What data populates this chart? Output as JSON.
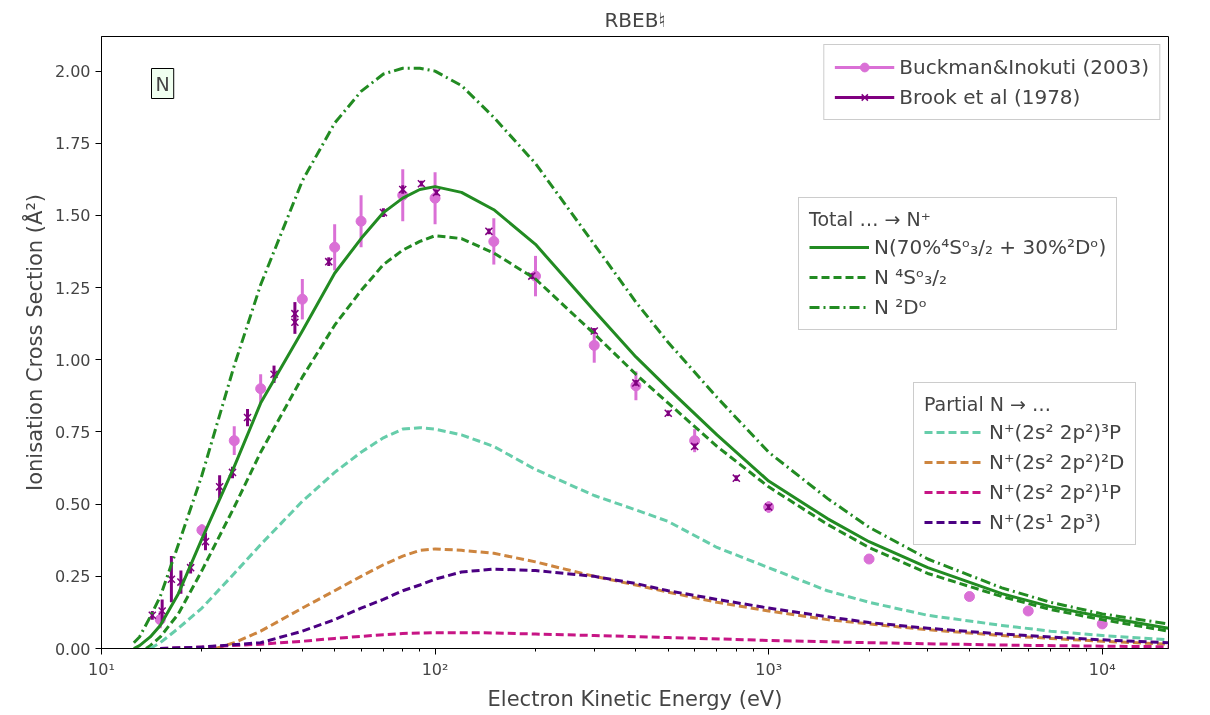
{
  "chart_data": {
    "type": "line",
    "title": "RBEB♮",
    "xlabel": "Electron Kinetic Energy (eV)",
    "ylabel": "Ionisation Cross Section (Å²)",
    "log": "x",
    "xlim": [
      10,
      15800
    ],
    "ylim": [
      0,
      2.12
    ],
    "xticks": [
      {
        "value": 10,
        "label": "10¹"
      },
      {
        "value": 100,
        "label": "10²"
      },
      {
        "value": 1000,
        "label": "10³"
      },
      {
        "value": 10000,
        "label": "10⁴"
      }
    ],
    "yticks": [
      {
        "value": 0,
        "label": "0.00"
      },
      {
        "value": 0.25,
        "label": "0.25"
      },
      {
        "value": 0.5,
        "label": "0.50"
      },
      {
        "value": 0.75,
        "label": "0.75"
      },
      {
        "value": 1,
        "label": "1.00"
      },
      {
        "value": 1.25,
        "label": "1.25"
      },
      {
        "value": 1.5,
        "label": "1.50"
      },
      {
        "value": 1.75,
        "label": "1.75"
      },
      {
        "value": 2,
        "label": "2.00"
      }
    ],
    "grid": false,
    "legend": "top right",
    "legend_title": [
      "Total … → N⁺",
      "Partial N → …"
    ],
    "annotations": [
      "N"
    ],
    "series": [
      {
        "name": "Buckman&Inokuti (2003)",
        "type": "scatter",
        "marker": "circle",
        "color": "#da70d6",
        "x": [
          15,
          20,
          25,
          30,
          40,
          50,
          60,
          80,
          100,
          150,
          200,
          300,
          400,
          600,
          1000,
          2000,
          4000,
          6000,
          10000
        ],
        "values": [
          0.1,
          0.41,
          0.72,
          0.9,
          1.21,
          1.39,
          1.48,
          1.57,
          1.56,
          1.41,
          1.29,
          1.05,
          0.91,
          0.72,
          0.49,
          0.31,
          0.18,
          0.13,
          0.085
        ],
        "errors": [
          0.03,
          0.02,
          0.05,
          0.05,
          0.07,
          0.08,
          0.09,
          0.09,
          0.09,
          0.08,
          0.07,
          0.06,
          0.05,
          0.04,
          0.02,
          null,
          null,
          null,
          null
        ]
      },
      {
        "name": "Brook et al (1978)",
        "type": "scatter",
        "marker": "cross",
        "color": "#800080",
        "x": [
          14.2,
          15.2,
          16.2,
          17.3,
          18.5,
          20.5,
          22.6,
          24.7,
          27.4,
          32.9,
          38,
          38,
          48,
          70,
          80,
          91,
          101,
          145,
          195,
          300,
          400,
          500,
          600,
          800,
          1000
        ],
        "values": [
          0.115,
          0.13,
          0.24,
          0.23,
          0.28,
          0.37,
          0.56,
          0.61,
          0.8,
          0.95,
          1.13,
          1.16,
          1.34,
          1.51,
          1.59,
          1.61,
          1.58,
          1.445,
          1.29,
          1.1,
          0.92,
          0.815,
          0.7,
          0.59,
          0.49
        ],
        "errors": [
          0.015,
          0.04,
          0.08,
          0.04,
          0.02,
          0.03,
          0.04,
          0.02,
          0.03,
          0.03,
          0.04,
          0.04,
          0.015,
          0.015,
          0.015,
          0.01,
          0.01,
          0.01,
          0.01,
          0.01,
          0.01,
          0.01,
          0.01,
          0.01,
          0.01
        ]
      },
      {
        "name": "N(70%⁴Sᵒ₃/₂ + 30%²Dᵒ)",
        "line_style": "solid",
        "color": "#228b22",
        "x": [
          12.5,
          13,
          14,
          15,
          17,
          20,
          25,
          30,
          40,
          50,
          60,
          70,
          80,
          90,
          100,
          120,
          150,
          200,
          300,
          400,
          500,
          700,
          1000,
          1500,
          2000,
          3000,
          5000,
          7000,
          10000,
          15800
        ],
        "values": [
          0,
          0.01,
          0.04,
          0.08,
          0.19,
          0.38,
          0.63,
          0.85,
          1.1,
          1.3,
          1.42,
          1.51,
          1.56,
          1.59,
          1.6,
          1.58,
          1.52,
          1.4,
          1.17,
          1.01,
          0.9,
          0.74,
          0.58,
          0.45,
          0.37,
          0.28,
          0.19,
          0.145,
          0.11,
          0.07
        ]
      },
      {
        "name": "N ⁴Sᵒ₃/₂",
        "line_style": "dashed",
        "color": "#228b22",
        "x": [
          13.6,
          14,
          15,
          17,
          20,
          25,
          30,
          40,
          50,
          60,
          70,
          80,
          90,
          100,
          120,
          150,
          200,
          300,
          400,
          500,
          700,
          1000,
          1500,
          2000,
          3000,
          5000,
          7000,
          10000,
          15800
        ],
        "values": [
          0,
          0.01,
          0.04,
          0.12,
          0.27,
          0.49,
          0.68,
          0.94,
          1.12,
          1.24,
          1.33,
          1.38,
          1.41,
          1.43,
          1.42,
          1.37,
          1.28,
          1.09,
          0.95,
          0.85,
          0.7,
          0.56,
          0.43,
          0.35,
          0.26,
          0.18,
          0.135,
          0.1,
          0.06
        ]
      },
      {
        "name": "N ²Dᵒ",
        "line_style": "dashdot",
        "color": "#228b22",
        "x": [
          12.5,
          13,
          14,
          15,
          17,
          20,
          25,
          30,
          40,
          50,
          60,
          70,
          80,
          90,
          100,
          120,
          150,
          200,
          300,
          400,
          500,
          700,
          1000,
          1500,
          2000,
          3000,
          5000,
          7000,
          10000,
          15800
        ],
        "values": [
          0.02,
          0.04,
          0.11,
          0.18,
          0.36,
          0.6,
          0.98,
          1.26,
          1.62,
          1.82,
          1.93,
          1.99,
          2.01,
          2.01,
          2.0,
          1.95,
          1.84,
          1.68,
          1.4,
          1.2,
          1.06,
          0.87,
          0.68,
          0.52,
          0.42,
          0.31,
          0.21,
          0.16,
          0.12,
          0.085
        ]
      },
      {
        "name": "N⁺(2s² 2p²)³P",
        "line_style": "dashed",
        "color": "#66cdaa",
        "x": [
          14,
          15,
          17,
          20,
          25,
          30,
          40,
          50,
          60,
          70,
          80,
          90,
          100,
          120,
          150,
          200,
          300,
          400,
          500,
          700,
          1000,
          1500,
          2000,
          3000,
          5000,
          7000,
          10000,
          15800
        ],
        "values": [
          0,
          0.02,
          0.07,
          0.14,
          0.26,
          0.36,
          0.51,
          0.61,
          0.68,
          0.73,
          0.76,
          0.765,
          0.76,
          0.74,
          0.7,
          0.62,
          0.53,
          0.48,
          0.44,
          0.35,
          0.28,
          0.2,
          0.16,
          0.115,
          0.08,
          0.06,
          0.045,
          0.03
        ]
      },
      {
        "name": "N⁺(2s² 2p²)²D",
        "line_style": "dashed",
        "color": "#cd853f",
        "x": [
          22,
          25,
          30,
          40,
          50,
          60,
          70,
          80,
          90,
          100,
          120,
          150,
          200,
          300,
          400,
          500,
          700,
          1000,
          1500,
          2000,
          3000,
          5000,
          7000,
          10000,
          15800
        ],
        "values": [
          0,
          0.02,
          0.06,
          0.14,
          0.2,
          0.25,
          0.29,
          0.32,
          0.34,
          0.345,
          0.34,
          0.33,
          0.3,
          0.25,
          0.22,
          0.195,
          0.16,
          0.13,
          0.1,
          0.085,
          0.065,
          0.045,
          0.035,
          0.025,
          0.015
        ]
      },
      {
        "name": "N⁺(2s² 2p²)¹P",
        "line_style": "dashed",
        "color": "#c71585",
        "x": [
          15,
          20,
          30,
          40,
          50,
          60,
          70,
          80,
          100,
          150,
          200,
          300,
          500,
          1000,
          2000,
          5000,
          10000,
          15800
        ],
        "values": [
          0,
          0.005,
          0.015,
          0.025,
          0.035,
          0.042,
          0.048,
          0.052,
          0.055,
          0.054,
          0.05,
          0.045,
          0.038,
          0.028,
          0.02,
          0.012,
          0.008,
          0.006
        ]
      },
      {
        "name": "N⁺(2s¹ 2p³)",
        "line_style": "dashed",
        "color": "#4b0082",
        "x": [
          15,
          20,
          30,
          40,
          50,
          60,
          70,
          80,
          90,
          100,
          120,
          150,
          200,
          300,
          400,
          500,
          700,
          1000,
          1500,
          2000,
          3000,
          5000,
          7000,
          10000,
          15800
        ],
        "values": [
          0,
          0.005,
          0.02,
          0.06,
          0.1,
          0.14,
          0.17,
          0.2,
          0.22,
          0.24,
          0.265,
          0.275,
          0.27,
          0.25,
          0.225,
          0.2,
          0.17,
          0.14,
          0.11,
          0.09,
          0.07,
          0.05,
          0.04,
          0.03,
          0.02
        ]
      }
    ]
  }
}
